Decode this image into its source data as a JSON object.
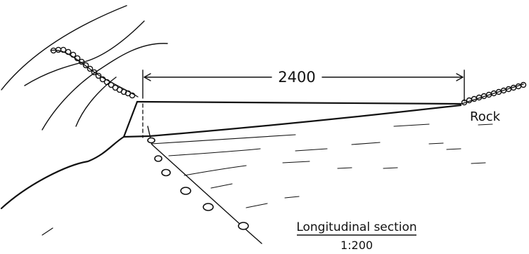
{
  "drawing": {
    "dimension_label": "2400",
    "rock_label": "Rock",
    "caption": "Longitudinal section",
    "scale": "1:200"
  }
}
